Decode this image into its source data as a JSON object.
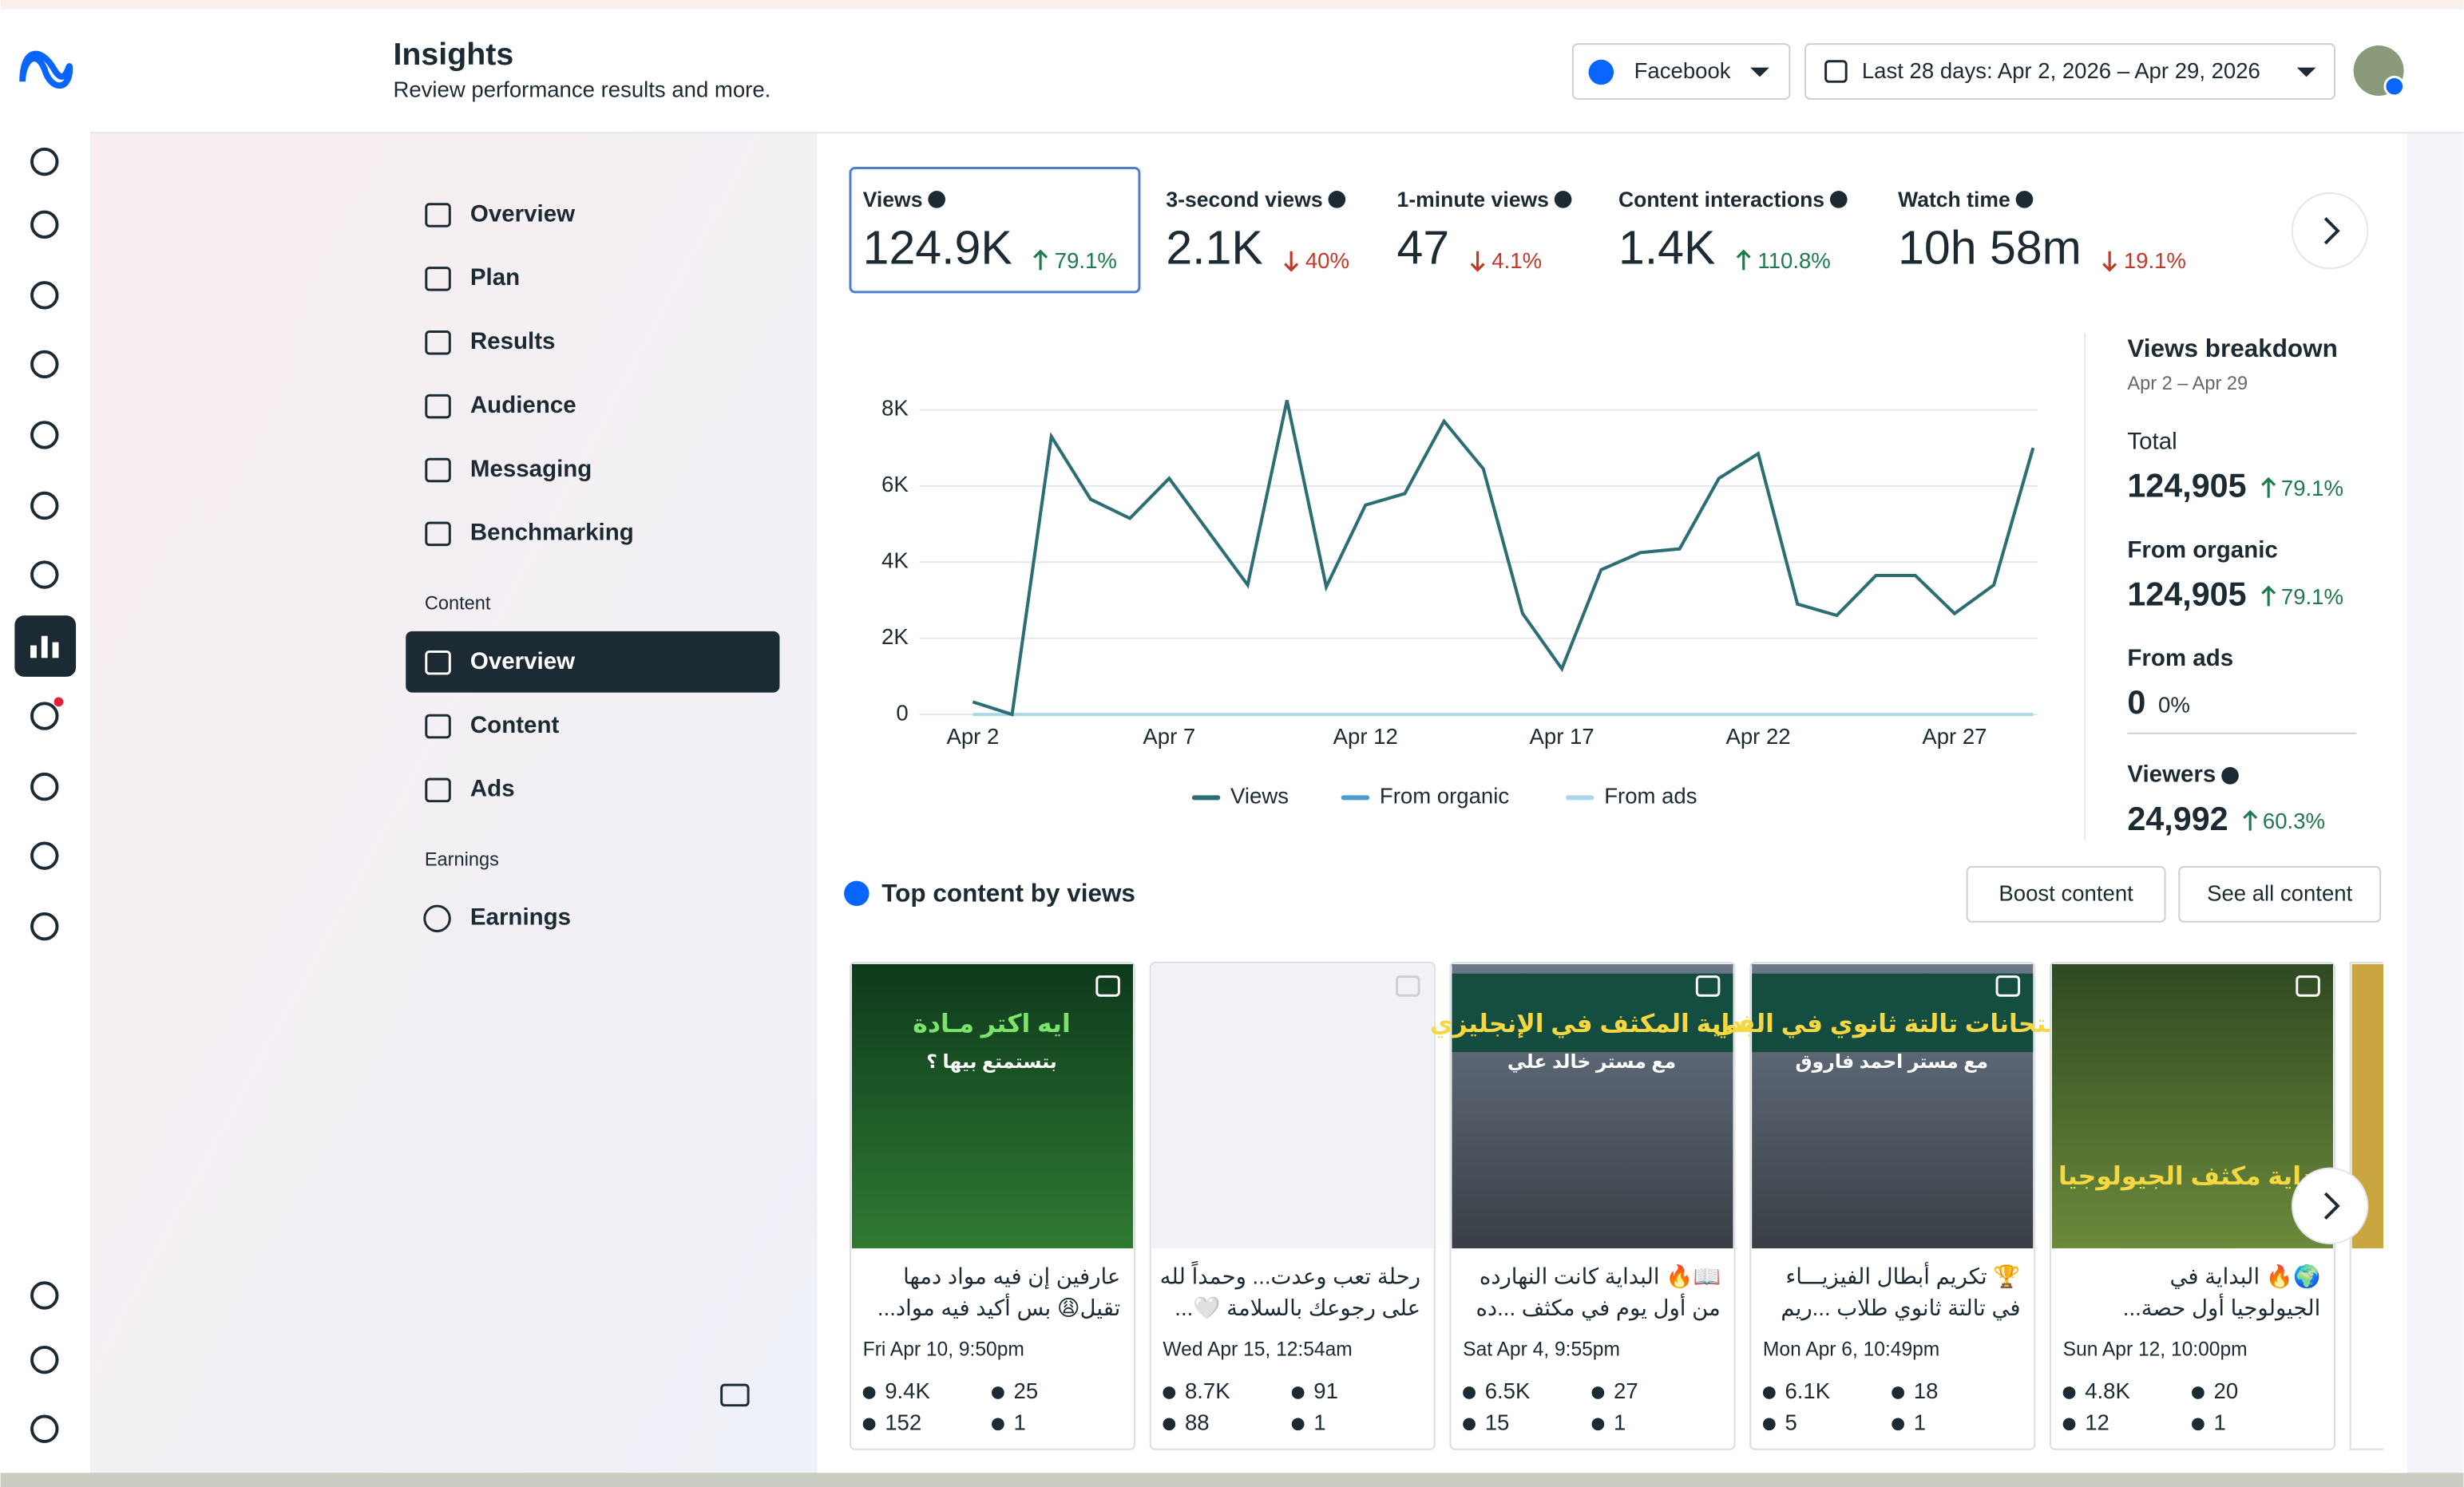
{
  "header": {
    "title": "Insights",
    "subtitle": "Review performance results and more.",
    "platform": "Facebook",
    "date_range": "Last 28 days: Apr 2, 2026 – Apr 29, 2026"
  },
  "nav": {
    "items": [
      "Overview",
      "Plan",
      "Results",
      "Audience",
      "Messaging",
      "Benchmarking"
    ],
    "content_heading": "Content",
    "content_items": [
      "Overview",
      "Content",
      "Ads"
    ],
    "earnings_heading": "Earnings",
    "earnings_items": [
      "Earnings"
    ]
  },
  "metrics": [
    {
      "label": "Views",
      "value": "124.9K",
      "change": "79.1%",
      "direction": "up"
    },
    {
      "label": "3-second views",
      "value": "2.1K",
      "change": "40%",
      "direction": "down"
    },
    {
      "label": "1-minute views",
      "value": "47",
      "change": "4.1%",
      "direction": "down"
    },
    {
      "label": "Content interactions",
      "value": "1.4K",
      "change": "110.8%",
      "direction": "up"
    },
    {
      "label": "Watch time",
      "value": "10h 58m",
      "change": "19.1%",
      "direction": "down"
    }
  ],
  "chart_data": {
    "type": "line",
    "categories": [
      "Apr 2",
      null,
      null,
      null,
      null,
      "Apr 7",
      null,
      null,
      null,
      null,
      "Apr 12",
      null,
      null,
      null,
      null,
      "Apr 17",
      null,
      null,
      null,
      null,
      "Apr 22",
      null,
      null,
      null,
      null,
      "Apr 27",
      null,
      null
    ],
    "series": [
      {
        "name": "Views",
        "color": "#2d6e73",
        "values": [
          330,
          0,
          7300,
          5650,
          5150,
          6200,
          4800,
          3400,
          8250,
          3350,
          5500,
          5800,
          7700,
          6450,
          2650,
          1200,
          3800,
          4250,
          4350,
          6200,
          6850,
          2900,
          2600,
          3650,
          3650,
          2650,
          3400,
          7000
        ]
      },
      {
        "name": "From organic",
        "color": "#4f9bd0",
        "values": [
          330,
          0,
          7300,
          5650,
          5150,
          6200,
          4800,
          3400,
          8250,
          3350,
          5500,
          5800,
          7700,
          6450,
          2650,
          1200,
          3800,
          4250,
          4350,
          6200,
          6850,
          2900,
          2600,
          3650,
          3650,
          2650,
          3400,
          7000
        ]
      },
      {
        "name": "From ads",
        "color": "#a9d8ec",
        "values": [
          0,
          0,
          0,
          0,
          0,
          0,
          0,
          0,
          0,
          0,
          0,
          0,
          0,
          0,
          0,
          0,
          0,
          0,
          0,
          0,
          0,
          0,
          0,
          0,
          0,
          0,
          0,
          0
        ]
      }
    ],
    "ylim": [
      0,
      8000
    ],
    "yticks": [
      0,
      {
        "value": 2000,
        "label": "2K"
      },
      {
        "value": 4000,
        "label": "4K"
      },
      {
        "value": 6000,
        "label": "6K"
      },
      {
        "value": 8000,
        "label": "8K"
      }
    ],
    "grid": true
  },
  "breakdown": {
    "title": "Views breakdown",
    "range": "Apr 2 – Apr 29",
    "rows": [
      {
        "label": "Total",
        "value": "124,905",
        "change": "79.1%",
        "direction": "up"
      },
      {
        "label": "From organic",
        "value": "124,905",
        "change": "79.1%",
        "direction": "up"
      },
      {
        "label": "From ads",
        "value": "0",
        "change": "0%",
        "direction": "none"
      },
      {
        "label": "Viewers",
        "value": "24,992",
        "change": "60.3%",
        "direction": "up"
      }
    ]
  },
  "top_content": {
    "title": "Top content by views",
    "buttons": [
      "Boost content",
      "See all content"
    ],
    "posts": [
      {
        "overlay": [
          "ايه اكتر مـادة",
          "بتستمتع بيها ؟"
        ],
        "lines": [
          "عارفين إن فيه مواد دمها",
          "تقيل😩 بس أكيد فيه مواد..."
        ],
        "date": "Fri Apr 10, 9:50pm",
        "views": "9.4K",
        "likes": "25",
        "comments": "152",
        "shares": "1"
      },
      {
        "overlay": [],
        "lines": [
          "رحلة تعب وعدت... وحمداً لله",
          "على رجوعك بالسلامة 🤍..."
        ],
        "date": "Wed Apr 15, 12:54am",
        "views": "8.7K",
        "likes": "91",
        "comments": "88",
        "shares": "1"
      },
      {
        "overlay": [
          "بداية المكثف في الإنجليزي",
          "مع مستر خالد علي"
        ],
        "lines": [
          "📖🔥 البداية كانت النهارده",
          "من أول يوم في مكثف ...ده"
        ],
        "date": "Sat Apr 4, 9:55pm",
        "views": "6.5K",
        "likes": "27",
        "comments": "15",
        "shares": "1"
      },
      {
        "overlay": [
          "امتحانات تالتة ثانوي في الفي",
          "مع مستر احمد فاروق"
        ],
        "lines": [
          "🏆 تكريم أبطال الفيزيـــاء",
          "في تالتة ثانوي طلاب ...ريم"
        ],
        "date": "Mon Apr 6, 10:49pm",
        "views": "6.1K",
        "likes": "18",
        "comments": "5",
        "shares": "1"
      },
      {
        "overlay": [
          "بداية مكثف الجيولوجيا"
        ],
        "lines": [
          "🌍🔥 البداية في",
          "الجيولوجيا أول حصة..."
        ],
        "date": "Sun Apr 12, 10:00pm",
        "views": "4.8K",
        "likes": "20",
        "comments": "12",
        "shares": "1"
      }
    ]
  }
}
